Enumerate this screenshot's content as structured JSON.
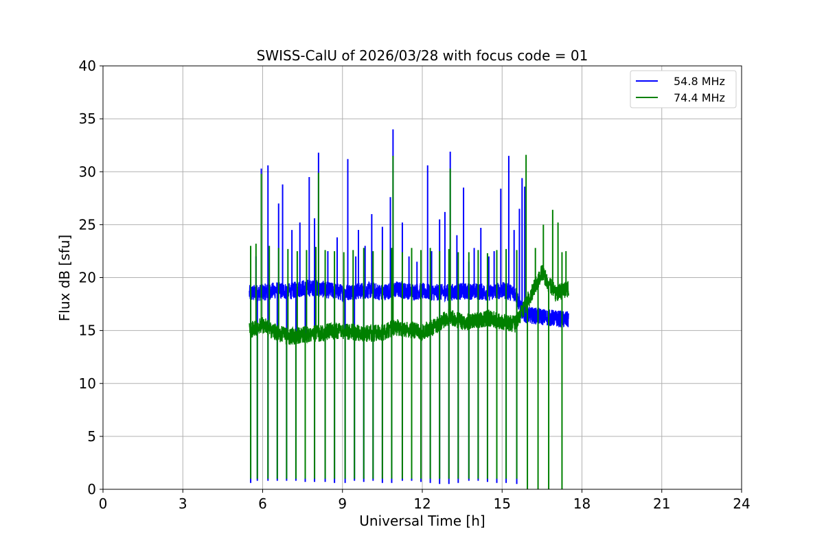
{
  "chart_data": {
    "type": "line",
    "title": "SWISS-CalU of 2026/03/28 with focus code = 01",
    "xlabel": "Universal Time [h]",
    "ylabel": "Flux dB [sfu]",
    "xlim": [
      0,
      24
    ],
    "ylim": [
      0,
      40
    ],
    "xticks": [
      0,
      3,
      6,
      9,
      12,
      15,
      18,
      21,
      24
    ],
    "yticks": [
      0,
      5,
      10,
      15,
      20,
      25,
      30,
      35,
      40
    ],
    "grid": true,
    "legend_position": "top-right",
    "series": [
      {
        "name": "54.8 MHz",
        "color": "#0000ff",
        "baseline": [
          [
            5.5,
            18.5
          ],
          [
            6.0,
            18.6
          ],
          [
            6.5,
            18.8
          ],
          [
            7.0,
            18.7
          ],
          [
            7.5,
            19.0
          ],
          [
            8.0,
            19.0
          ],
          [
            8.5,
            18.8
          ],
          [
            9.0,
            18.6
          ],
          [
            9.5,
            18.7
          ],
          [
            10.0,
            18.8
          ],
          [
            10.5,
            18.6
          ],
          [
            11.0,
            18.9
          ],
          [
            11.5,
            18.7
          ],
          [
            12.0,
            18.7
          ],
          [
            12.5,
            18.6
          ],
          [
            13.0,
            18.6
          ],
          [
            13.5,
            18.7
          ],
          [
            14.0,
            18.7
          ],
          [
            14.5,
            18.6
          ],
          [
            15.0,
            18.8
          ],
          [
            15.5,
            18.5
          ],
          [
            15.8,
            16.5
          ],
          [
            16.2,
            16.4
          ],
          [
            16.8,
            16.2
          ],
          [
            17.5,
            16.0
          ]
        ],
        "spikes": [
          [
            5.75,
            22.0
          ],
          [
            5.95,
            30.3
          ],
          [
            6.2,
            30.6
          ],
          [
            6.6,
            27.0
          ],
          [
            6.75,
            28.8
          ],
          [
            7.1,
            24.5
          ],
          [
            7.4,
            25.2
          ],
          [
            7.75,
            29.5
          ],
          [
            7.95,
            25.6
          ],
          [
            8.1,
            31.8
          ],
          [
            8.45,
            22.5
          ],
          [
            8.8,
            23.8
          ],
          [
            9.2,
            31.2
          ],
          [
            9.5,
            22.0
          ],
          [
            9.6,
            24.5
          ],
          [
            9.85,
            23.0
          ],
          [
            10.1,
            26.0
          ],
          [
            10.5,
            24.8
          ],
          [
            10.8,
            27.6
          ],
          [
            10.9,
            34.0
          ],
          [
            11.25,
            25.2
          ],
          [
            11.5,
            22.0
          ],
          [
            11.8,
            21.5
          ],
          [
            12.2,
            30.6
          ],
          [
            12.35,
            22.5
          ],
          [
            12.65,
            25.5
          ],
          [
            12.85,
            26.2
          ],
          [
            13.05,
            31.9
          ],
          [
            13.3,
            24.0
          ],
          [
            13.55,
            28.5
          ],
          [
            13.75,
            21.5
          ],
          [
            13.95,
            22.8
          ],
          [
            14.2,
            24.7
          ],
          [
            14.5,
            22.0
          ],
          [
            14.7,
            22.5
          ],
          [
            14.95,
            28.4
          ],
          [
            15.25,
            31.5
          ],
          [
            15.45,
            24.5
          ],
          [
            15.65,
            26.5
          ],
          [
            15.75,
            29.4
          ],
          [
            15.85,
            28.6
          ]
        ],
        "dips": [
          [
            5.55,
            0.6
          ],
          [
            5.8,
            0.8
          ],
          [
            6.2,
            0.8
          ],
          [
            6.55,
            0.8
          ],
          [
            6.9,
            0.8
          ],
          [
            7.25,
            0.8
          ],
          [
            7.6,
            0.7
          ],
          [
            7.95,
            0.7
          ],
          [
            8.35,
            0.7
          ],
          [
            8.7,
            0.6
          ],
          [
            9.1,
            0.6
          ],
          [
            9.45,
            0.8
          ],
          [
            9.8,
            0.7
          ],
          [
            10.15,
            0.8
          ],
          [
            10.5,
            0.6
          ],
          [
            10.85,
            0.6
          ],
          [
            11.25,
            0.8
          ],
          [
            11.6,
            0.8
          ],
          [
            11.95,
            0.7
          ],
          [
            12.3,
            0.6
          ],
          [
            12.65,
            0.5
          ],
          [
            13.0,
            0.5
          ],
          [
            13.35,
            0.6
          ],
          [
            13.75,
            0.8
          ],
          [
            14.1,
            0.8
          ],
          [
            14.45,
            0.7
          ],
          [
            14.8,
            0.6
          ],
          [
            15.15,
            0.6
          ],
          [
            15.55,
            0.5
          ]
        ]
      },
      {
        "name": "74.4 MHz",
        "color": "#008000",
        "baseline": [
          [
            5.5,
            15.0
          ],
          [
            6.0,
            15.5
          ],
          [
            6.5,
            14.8
          ],
          [
            7.0,
            14.4
          ],
          [
            7.5,
            14.6
          ],
          [
            8.0,
            14.7
          ],
          [
            8.5,
            14.9
          ],
          [
            9.0,
            15.0
          ],
          [
            9.5,
            14.8
          ],
          [
            10.0,
            14.7
          ],
          [
            10.5,
            14.8
          ],
          [
            11.0,
            15.3
          ],
          [
            11.5,
            15.1
          ],
          [
            12.0,
            14.9
          ],
          [
            12.5,
            15.4
          ],
          [
            13.0,
            16.3
          ],
          [
            13.5,
            15.8
          ],
          [
            14.0,
            15.9
          ],
          [
            14.5,
            16.2
          ],
          [
            15.0,
            15.8
          ],
          [
            15.5,
            15.6
          ],
          [
            16.0,
            18.0
          ],
          [
            16.5,
            20.5
          ],
          [
            17.0,
            18.5
          ],
          [
            17.5,
            19.0
          ]
        ],
        "spikes": [
          [
            5.55,
            23.0
          ],
          [
            5.75,
            23.2
          ],
          [
            5.95,
            29.8
          ],
          [
            6.25,
            23.0
          ],
          [
            6.6,
            22.8
          ],
          [
            6.95,
            22.7
          ],
          [
            7.3,
            22.5
          ],
          [
            7.65,
            22.6
          ],
          [
            8.0,
            22.9
          ],
          [
            8.1,
            29.9
          ],
          [
            8.35,
            22.6
          ],
          [
            8.7,
            22.5
          ],
          [
            9.05,
            22.4
          ],
          [
            9.4,
            22.6
          ],
          [
            9.8,
            22.8
          ],
          [
            10.15,
            22.5
          ],
          [
            10.5,
            22.6
          ],
          [
            10.85,
            22.8
          ],
          [
            10.9,
            31.5
          ],
          [
            11.25,
            22.4
          ],
          [
            11.6,
            22.8
          ],
          [
            11.95,
            22.6
          ],
          [
            12.3,
            22.8
          ],
          [
            12.65,
            22.5
          ],
          [
            13.0,
            22.7
          ],
          [
            13.05,
            30.3
          ],
          [
            13.35,
            22.4
          ],
          [
            13.75,
            22.4
          ],
          [
            14.1,
            22.6
          ],
          [
            14.45,
            22.3
          ],
          [
            14.8,
            22.6
          ],
          [
            15.15,
            22.7
          ],
          [
            15.55,
            22.6
          ],
          [
            15.9,
            31.6
          ],
          [
            16.25,
            22.8
          ],
          [
            16.55,
            25.0
          ],
          [
            16.9,
            26.4
          ],
          [
            17.1,
            25.2
          ],
          [
            17.25,
            22.4
          ],
          [
            17.4,
            22.5
          ]
        ],
        "dips": [
          [
            5.55,
            1.0
          ],
          [
            5.8,
            1.0
          ],
          [
            6.2,
            1.0
          ],
          [
            6.55,
            1.0
          ],
          [
            6.9,
            1.0
          ],
          [
            7.25,
            1.0
          ],
          [
            7.6,
            1.0
          ],
          [
            7.95,
            1.0
          ],
          [
            8.35,
            1.0
          ],
          [
            8.7,
            1.0
          ],
          [
            9.1,
            1.0
          ],
          [
            9.45,
            1.0
          ],
          [
            9.8,
            1.0
          ],
          [
            10.15,
            1.0
          ],
          [
            10.5,
            1.0
          ],
          [
            10.85,
            1.0
          ],
          [
            11.25,
            1.0
          ],
          [
            11.6,
            1.0
          ],
          [
            11.95,
            1.0
          ],
          [
            12.3,
            1.0
          ],
          [
            12.65,
            1.0
          ],
          [
            13.0,
            1.0
          ],
          [
            13.35,
            1.0
          ],
          [
            13.75,
            1.0
          ],
          [
            14.1,
            1.0
          ],
          [
            14.45,
            1.0
          ],
          [
            14.8,
            1.0
          ],
          [
            15.15,
            1.0
          ],
          [
            15.55,
            1.0
          ],
          [
            15.95,
            0.0
          ],
          [
            16.35,
            0.0
          ],
          [
            16.75,
            0.0
          ],
          [
            17.25,
            0.0
          ]
        ]
      }
    ]
  }
}
